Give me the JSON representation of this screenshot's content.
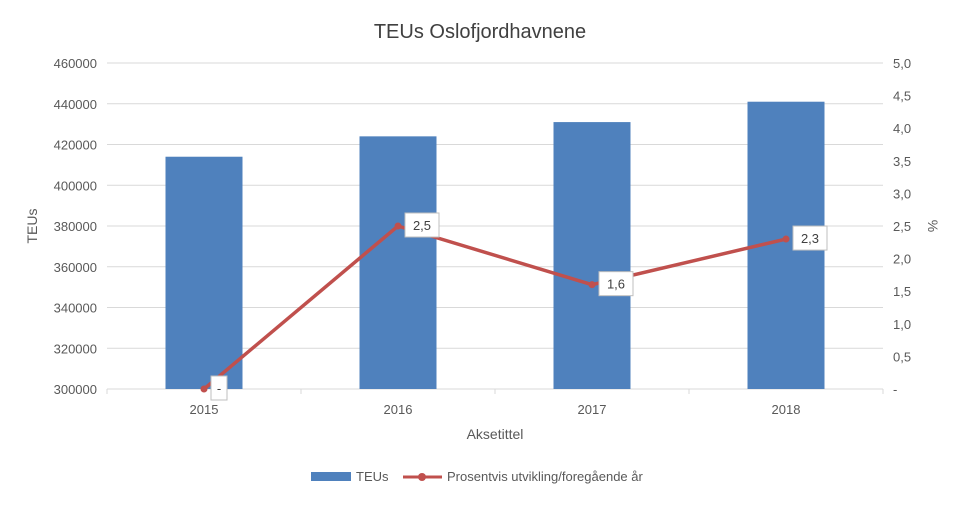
{
  "chart_data": {
    "type": "bar+line",
    "title": "TEUs Oslofjordhavnene",
    "xlabel": "Aksetittel",
    "ylabel": "TEUs",
    "y2label": "%",
    "categories": [
      "2015",
      "2016",
      "2017",
      "2018"
    ],
    "ylim": [
      300000,
      460000
    ],
    "y2lim": [
      0,
      5
    ],
    "yticks": [
      "300000",
      "320000",
      "340000",
      "360000",
      "380000",
      "400000",
      "420000",
      "440000",
      "460000"
    ],
    "y2ticks": [
      "-",
      "0,5",
      "1,0",
      "1,5",
      "2,0",
      "2,5",
      "3,0",
      "3,5",
      "4,0",
      "4,5",
      "5,0"
    ],
    "grid": true,
    "legend_position": "bottom",
    "series": [
      {
        "name": "TEUs",
        "type": "bar",
        "axis": "left",
        "color": "#4f81bd",
        "values": [
          414000,
          424000,
          431000,
          441000
        ]
      },
      {
        "name": "Prosentvis utvikling/foregående år",
        "type": "line",
        "axis": "right",
        "color": "#c0504d",
        "values": [
          0,
          2.5,
          1.6,
          2.3
        ],
        "labels": [
          "-",
          "2,5",
          "1,6",
          "2,3"
        ]
      }
    ]
  }
}
